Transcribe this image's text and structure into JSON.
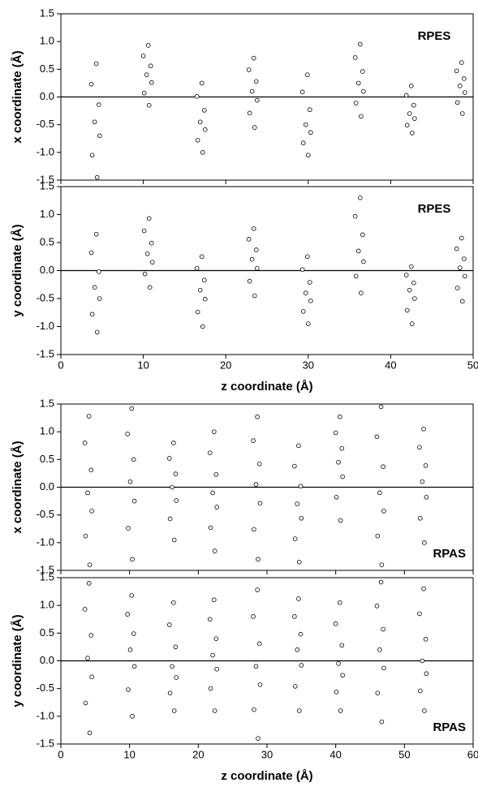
{
  "chart_data": [
    {
      "type": "scatter",
      "ylabel": "x coordinate (Å)",
      "annotation": "RPES",
      "annotation_position": "upper right",
      "show_xtick_labels": false,
      "hline": 0,
      "marker": "open-circle",
      "color": "#000000",
      "xlim": [
        0,
        50
      ],
      "xticks": [
        0,
        10,
        20,
        30,
        40,
        50
      ],
      "ylim": [
        -1.5,
        1.5
      ],
      "yticks": [
        -1.5,
        {
          "value": -1,
          "label": "-1.0"
        },
        -0.5,
        {
          "value": 0,
          "label": "0.0"
        },
        0.5,
        {
          "value": 1,
          "label": "1.0"
        },
        1.5
      ],
      "x": [
        4.4,
        3.8,
        4.7,
        4.1,
        4.6,
        3.7,
        4.3,
        10.7,
        10.1,
        11.0,
        10.4,
        10.9,
        10.0,
        10.6,
        17.2,
        16.6,
        17.5,
        16.9,
        17.4,
        16.5,
        17.1,
        23.5,
        22.9,
        23.8,
        23.2,
        23.7,
        22.8,
        23.4,
        30.0,
        29.4,
        30.3,
        29.7,
        30.2,
        29.3,
        29.9,
        36.4,
        35.8,
        36.7,
        36.1,
        36.6,
        35.7,
        36.3,
        42.6,
        42.0,
        42.9,
        42.3,
        42.8,
        41.9,
        42.5,
        48.7,
        48.1,
        49.0,
        48.4,
        48.9,
        48.0,
        48.6
      ],
      "y": [
        -1.45,
        -1.05,
        -0.7,
        -0.45,
        -0.14,
        0.23,
        0.6,
        -0.15,
        0.07,
        0.26,
        0.4,
        0.56,
        0.74,
        0.93,
        -1.0,
        -0.78,
        -0.59,
        -0.45,
        -0.24,
        0.01,
        0.25,
        -0.55,
        -0.29,
        -0.06,
        0.1,
        0.28,
        0.49,
        0.7,
        -1.05,
        -0.83,
        -0.64,
        -0.5,
        -0.23,
        0.09,
        0.4,
        -0.35,
        -0.11,
        0.1,
        0.25,
        0.46,
        0.71,
        0.95,
        -0.65,
        -0.51,
        -0.39,
        -0.3,
        -0.15,
        0.03,
        0.2,
        -0.3,
        -0.1,
        0.08,
        0.2,
        0.33,
        0.47,
        0.62
      ]
    },
    {
      "type": "scatter",
      "ylabel": "y coordinate (Å)",
      "xlabel": "z coordinate (Å)",
      "annotation": "RPES",
      "annotation_position": "upper right",
      "show_xtick_labels": true,
      "hline": 0,
      "marker": "open-circle",
      "color": "#000000",
      "xlim": [
        0,
        50
      ],
      "xticks": [
        0,
        10,
        20,
        30,
        40,
        50
      ],
      "ylim": [
        -1.5,
        1.5
      ],
      "yticks": [
        -1.5,
        {
          "value": -1,
          "label": "-1.0"
        },
        -0.5,
        {
          "value": 0,
          "label": "0.0"
        },
        0.5,
        {
          "value": 1,
          "label": "1.0"
        },
        1.5
      ],
      "x": [
        4.4,
        3.8,
        4.7,
        4.1,
        4.6,
        3.7,
        4.3,
        10.8,
        10.2,
        11.1,
        10.5,
        11.0,
        10.1,
        10.7,
        17.2,
        16.6,
        17.5,
        16.9,
        17.4,
        16.5,
        17.1,
        23.5,
        22.9,
        23.8,
        23.2,
        23.7,
        22.8,
        23.4,
        30.0,
        29.4,
        30.3,
        29.7,
        30.2,
        29.3,
        29.9,
        36.4,
        35.8,
        36.7,
        36.1,
        36.6,
        35.7,
        36.3,
        42.6,
        42.0,
        42.9,
        42.3,
        42.8,
        41.9,
        42.5,
        48.7,
        48.1,
        49.0,
        48.4,
        48.9,
        48.0,
        48.6
      ],
      "y": [
        -1.1,
        -0.78,
        -0.5,
        -0.3,
        -0.02,
        0.32,
        0.65,
        -0.3,
        -0.06,
        0.15,
        0.3,
        0.49,
        0.71,
        0.93,
        -1.0,
        -0.74,
        -0.51,
        -0.35,
        -0.17,
        0.04,
        0.25,
        -0.45,
        -0.19,
        0.04,
        0.2,
        0.37,
        0.56,
        0.75,
        -0.95,
        -0.73,
        -0.54,
        -0.4,
        -0.21,
        0.02,
        0.25,
        -0.4,
        -0.1,
        0.16,
        0.35,
        0.64,
        0.97,
        1.3,
        -0.95,
        -0.71,
        -0.5,
        -0.35,
        -0.22,
        -0.08,
        0.07,
        -0.55,
        -0.31,
        -0.1,
        0.05,
        0.21,
        0.39,
        0.58
      ]
    },
    {
      "type": "scatter",
      "ylabel": "x coordinate (Å)",
      "annotation": "RPAS",
      "annotation_position": "lower right",
      "show_xtick_labels": false,
      "hline": 0,
      "marker": "open-circle",
      "color": "#000000",
      "xlim": [
        0,
        60
      ],
      "xticks": [
        0,
        10,
        20,
        30,
        40,
        50,
        60
      ],
      "ylim": [
        -1.5,
        1.5
      ],
      "yticks": [
        -1.5,
        {
          "value": -1,
          "label": "-1.0"
        },
        -0.5,
        {
          "value": 0,
          "label": "0.0"
        },
        0.5,
        {
          "value": 1,
          "label": "1.0"
        },
        1.5
      ],
      "x": [
        4.2,
        3.6,
        4.5,
        3.9,
        4.4,
        3.5,
        4.1,
        10.4,
        9.8,
        10.7,
        10.1,
        10.6,
        9.7,
        10.3,
        16.5,
        15.9,
        16.8,
        16.2,
        16.7,
        15.8,
        16.4,
        22.4,
        21.8,
        22.7,
        22.1,
        22.6,
        21.7,
        22.3,
        28.7,
        28.1,
        29.0,
        28.4,
        28.9,
        28.0,
        28.6,
        34.7,
        34.1,
        35.0,
        34.4,
        34.9,
        34.0,
        34.6,
        40.7,
        40.1,
        41.0,
        40.4,
        40.9,
        40.0,
        40.6,
        46.7,
        46.1,
        47.0,
        46.4,
        46.9,
        46.0,
        46.6,
        52.9,
        52.3,
        53.2,
        52.6,
        53.1,
        52.2,
        52.8
      ],
      "y": [
        -1.4,
        -0.88,
        -0.43,
        -0.1,
        0.31,
        0.8,
        1.28,
        -1.3,
        -0.74,
        -0.25,
        0.1,
        0.5,
        0.96,
        1.42,
        -0.95,
        -0.57,
        -0.24,
        0,
        0.24,
        0.52,
        0.8,
        -1.15,
        -0.73,
        -0.36,
        -0.1,
        0.23,
        0.62,
        1.0,
        -1.3,
        -0.76,
        -0.29,
        0.05,
        0.42,
        0.84,
        1.27,
        -1.35,
        -0.93,
        -0.56,
        -0.3,
        0.02,
        0.38,
        0.75,
        -0.6,
        -0.18,
        0.19,
        0.45,
        0.7,
        0.98,
        1.27,
        -1.4,
        -0.88,
        -0.43,
        -0.1,
        0.37,
        0.91,
        1.45,
        -1.0,
        -0.56,
        -0.18,
        0.1,
        0.39,
        0.72,
        1.05
      ]
    },
    {
      "type": "scatter",
      "ylabel": "y coordinate (Å)",
      "xlabel": "z coordinate (Å)",
      "annotation": "RPAS",
      "annotation_position": "lower right",
      "show_xtick_labels": true,
      "hline": 0,
      "marker": "open-circle",
      "color": "#000000",
      "xlim": [
        0,
        60
      ],
      "xticks": [
        0,
        10,
        20,
        30,
        40,
        50,
        60
      ],
      "ylim": [
        -1.5,
        1.5
      ],
      "yticks": [
        -1.5,
        {
          "value": -1,
          "label": "-1.0"
        },
        -0.5,
        {
          "value": 0,
          "label": "0.0"
        },
        0.5,
        {
          "value": 1,
          "label": "1.0"
        },
        1.5
      ],
      "x": [
        4.2,
        3.6,
        4.5,
        3.9,
        4.4,
        3.5,
        4.1,
        10.4,
        9.8,
        10.7,
        10.1,
        10.6,
        9.7,
        10.3,
        16.5,
        15.9,
        16.8,
        16.2,
        16.7,
        15.8,
        16.4,
        22.4,
        21.8,
        22.7,
        22.1,
        22.6,
        21.7,
        22.3,
        28.7,
        28.1,
        29.0,
        28.4,
        28.9,
        28.0,
        28.6,
        34.7,
        34.1,
        35.0,
        34.4,
        34.9,
        34.0,
        34.6,
        40.7,
        40.1,
        41.0,
        40.4,
        40.9,
        40.0,
        40.6,
        46.7,
        46.1,
        47.0,
        46.4,
        46.9,
        46.0,
        46.6,
        52.9,
        52.3,
        53.2,
        52.6,
        53.1,
        52.2,
        52.8
      ],
      "y": [
        -1.3,
        -0.76,
        -0.29,
        0.05,
        0.46,
        0.93,
        1.4,
        -1.0,
        -0.52,
        -0.1,
        0.2,
        0.49,
        0.84,
        1.18,
        -0.9,
        -0.58,
        -0.3,
        -0.1,
        0.25,
        0.65,
        1.05,
        -0.9,
        -0.5,
        -0.15,
        0.1,
        0.4,
        0.75,
        1.1,
        -1.4,
        -0.88,
        -0.43,
        -0.1,
        0.31,
        0.8,
        1.28,
        -0.9,
        -0.46,
        -0.08,
        0.2,
        0.48,
        0.8,
        1.12,
        -0.9,
        -0.56,
        -0.26,
        -0.05,
        0.28,
        0.67,
        1.05,
        -1.1,
        -0.58,
        -0.13,
        0.2,
        0.57,
        0.99,
        1.42,
        -0.9,
        -0.54,
        -0.23,
        0,
        0.39,
        0.85,
        1.3
      ]
    }
  ]
}
